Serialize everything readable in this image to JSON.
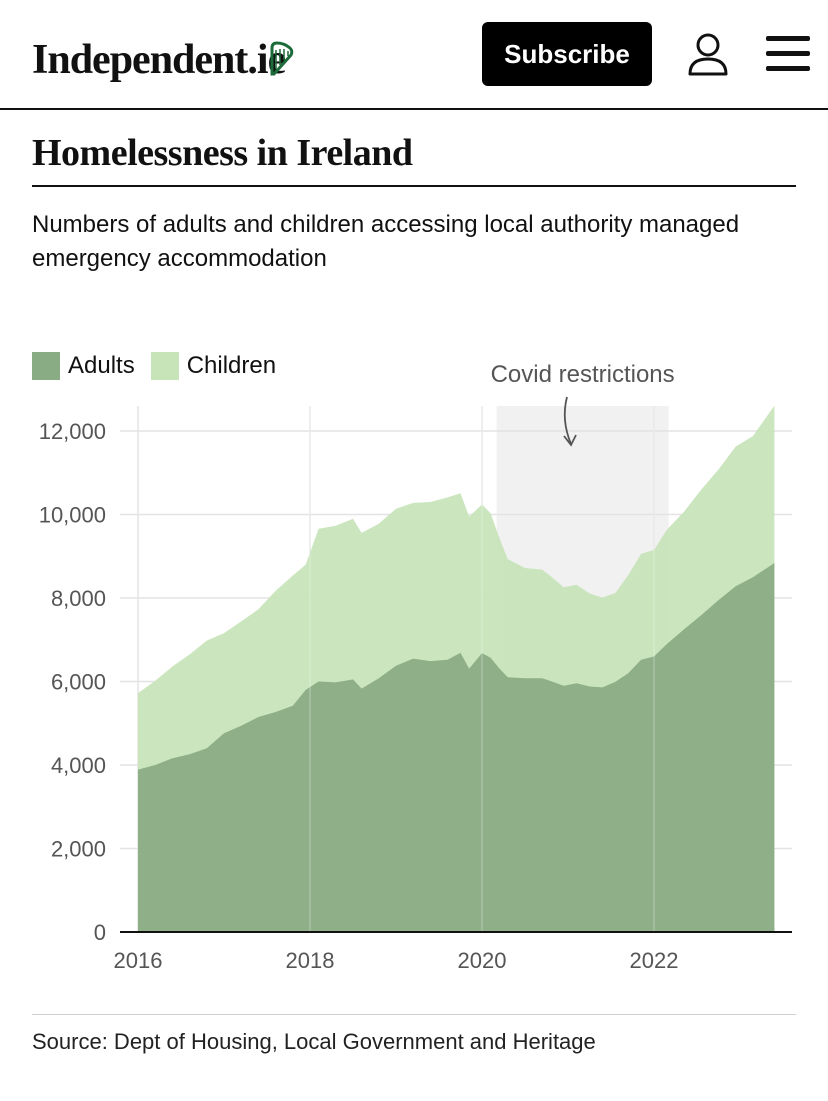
{
  "header": {
    "logo_text": "Independent.ie",
    "subscribe_label": "Subscribe",
    "icons": {
      "logo_mark": "harp-icon",
      "account": "user-icon",
      "menu": "menu-icon"
    }
  },
  "article": {
    "title": "Homelessness in Ireland",
    "subtitle": "Numbers of adults and children accessing local authority managed emergency accommodation",
    "source": "Source: Dept of Housing, Local Government and Heritage"
  },
  "colors": {
    "adults": "#8aac85",
    "children": "#c7e4b8",
    "covid_band": "#f1f1f1",
    "brand_green": "#1c6b3a"
  },
  "chart_data": {
    "type": "area",
    "stacked": true,
    "title": "",
    "xlabel": "",
    "ylabel": "",
    "xlim": [
      2016,
      2023.4
    ],
    "ylim": [
      0,
      12600
    ],
    "x_ticks": [
      "2016",
      "2018",
      "2020",
      "2022"
    ],
    "x_tick_values": [
      2016,
      2018,
      2020,
      2022
    ],
    "y_ticks": [
      "0",
      "2,000",
      "4,000",
      "6,000",
      "8,000",
      "10,000",
      "12,000"
    ],
    "y_tick_values": [
      0,
      2000,
      4000,
      6000,
      8000,
      10000,
      12000
    ],
    "grid": true,
    "legend_position": "top-left",
    "x": [
      2016.0,
      2016.2,
      2016.4,
      2016.6,
      2016.8,
      2017.0,
      2017.2,
      2017.4,
      2017.6,
      2017.8,
      2017.95,
      2018.1,
      2018.3,
      2018.5,
      2018.6,
      2018.8,
      2019.0,
      2019.2,
      2019.4,
      2019.6,
      2019.75,
      2019.85,
      2020.0,
      2020.1,
      2020.2,
      2020.3,
      2020.5,
      2020.7,
      2020.8,
      2020.95,
      2021.1,
      2021.25,
      2021.4,
      2021.55,
      2021.7,
      2021.85,
      2022.0,
      2022.15,
      2022.35,
      2022.55,
      2022.75,
      2022.95,
      2023.15,
      2023.4
    ],
    "series": [
      {
        "name": "Adults",
        "values": [
          3890,
          4000,
          4160,
          4260,
          4400,
          4760,
          4940,
          5150,
          5270,
          5420,
          5800,
          6000,
          5980,
          6050,
          5830,
          6080,
          6380,
          6550,
          6490,
          6520,
          6690,
          6310,
          6680,
          6570,
          6320,
          6100,
          6080,
          6080,
          6010,
          5900,
          5960,
          5880,
          5860,
          5990,
          6200,
          6520,
          6600,
          6900,
          7250,
          7590,
          7950,
          8280,
          8500,
          8840
        ]
      },
      {
        "name": "Children",
        "values": [
          1830,
          2020,
          2200,
          2390,
          2580,
          2400,
          2500,
          2580,
          2900,
          3120,
          3000,
          3660,
          3750,
          3850,
          3730,
          3700,
          3760,
          3730,
          3810,
          3890,
          3820,
          3640,
          3560,
          3460,
          3130,
          2830,
          2640,
          2600,
          2510,
          2360,
          2360,
          2230,
          2150,
          2130,
          2350,
          2540,
          2550,
          2740,
          2820,
          3010,
          3130,
          3350,
          3380,
          3770
        ]
      }
    ],
    "annotations": [
      {
        "text": "Covid restrictions",
        "x_start": 2020.17,
        "x_end": 2022.17
      }
    ]
  }
}
